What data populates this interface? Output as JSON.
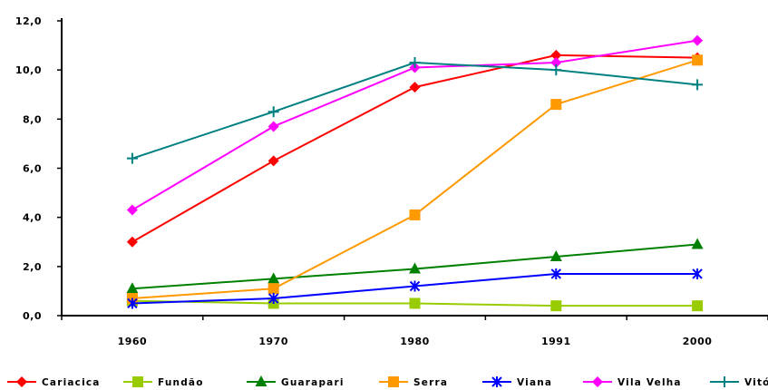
{
  "chart_data": {
    "type": "line",
    "title": "",
    "xlabel": "",
    "ylabel": "",
    "categories": [
      "1960",
      "1970",
      "1980",
      "1991",
      "2000"
    ],
    "ylim": [
      0,
      12
    ],
    "yticks": [
      "0,0",
      "2,0",
      "4,0",
      "6,0",
      "8,0",
      "10,0",
      "12,0"
    ],
    "legend_position": "bottom",
    "grid": false,
    "series": [
      {
        "name": "Cariacica",
        "color": "#ff0000",
        "marker": "diamond",
        "values": [
          3.0,
          6.3,
          9.3,
          10.6,
          10.5
        ]
      },
      {
        "name": "Fundão",
        "color": "#99cc00",
        "marker": "square",
        "values": [
          0.6,
          0.5,
          0.5,
          0.4,
          0.4
        ]
      },
      {
        "name": "Guarapari",
        "color": "#008000",
        "marker": "triangle",
        "values": [
          1.1,
          1.5,
          1.9,
          2.4,
          2.9
        ]
      },
      {
        "name": "Serra",
        "color": "#ff9900",
        "marker": "square",
        "values": [
          0.7,
          1.1,
          4.1,
          8.6,
          10.4
        ]
      },
      {
        "name": "Viana",
        "color": "#0000ff",
        "marker": "star",
        "values": [
          0.5,
          0.7,
          1.2,
          1.7,
          1.7
        ]
      },
      {
        "name": "Vila Velha",
        "color": "#ff00ff",
        "marker": "diamond",
        "values": [
          4.3,
          7.7,
          10.1,
          10.3,
          11.2
        ]
      },
      {
        "name": "Vitória",
        "color": "#008080",
        "marker": "plus",
        "values": [
          6.4,
          8.3,
          10.3,
          10.0,
          9.4
        ]
      }
    ]
  }
}
